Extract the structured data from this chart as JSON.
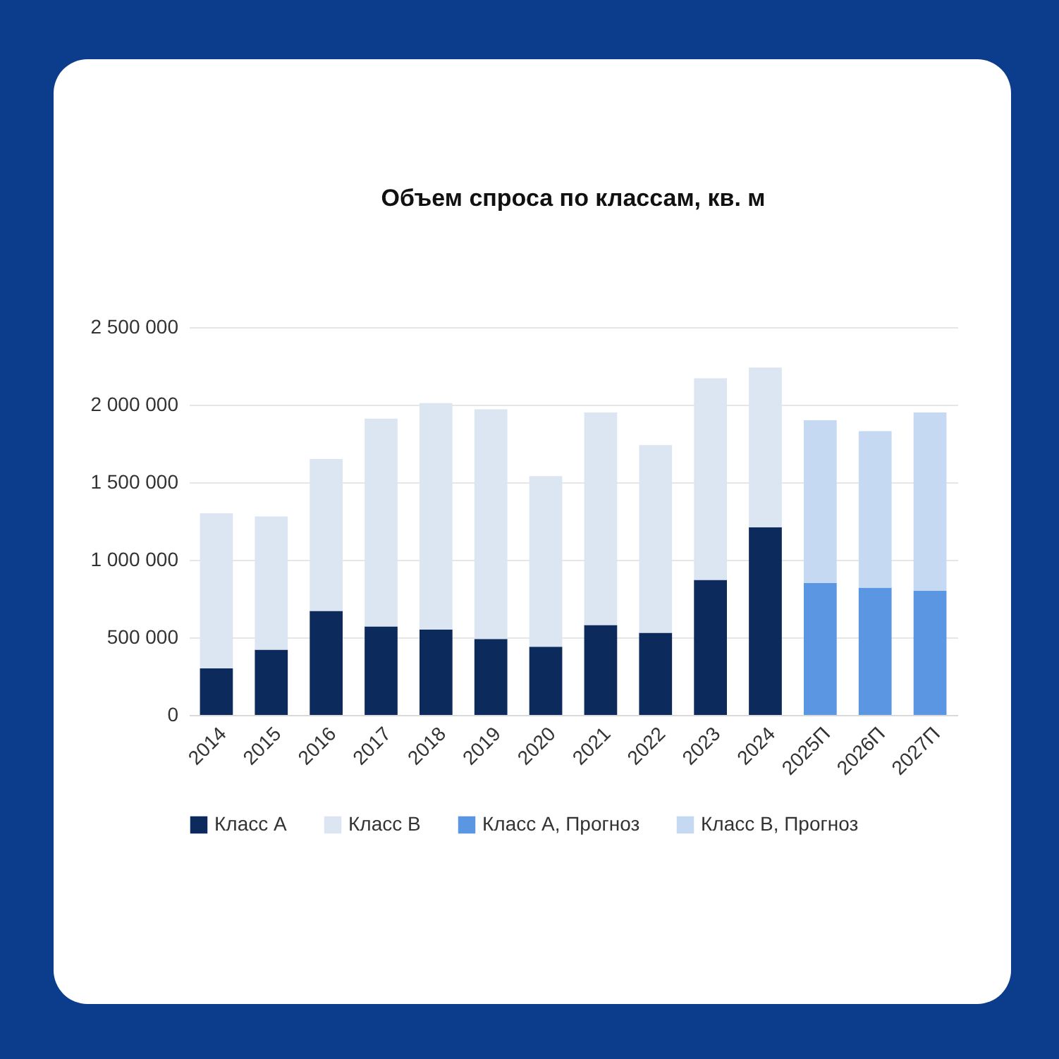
{
  "chart_data": {
    "type": "bar",
    "title": "Объем спроса по классам, кв. м",
    "stacked": true,
    "categories": [
      "2014",
      "2015",
      "2016",
      "2017",
      "2018",
      "2019",
      "2020",
      "2021",
      "2022",
      "2023",
      "2024",
      "2025П",
      "2026П",
      "2027П"
    ],
    "series": [
      {
        "name": "Класс A",
        "color": "#0d2a5c",
        "values": [
          300000,
          420000,
          670000,
          570000,
          550000,
          490000,
          440000,
          580000,
          530000,
          870000,
          1210000,
          null,
          null,
          null
        ]
      },
      {
        "name": "Класс B",
        "color": "#dce6f2",
        "values": [
          1000000,
          860000,
          980000,
          1340000,
          1460000,
          1480000,
          1100000,
          1370000,
          1210000,
          1300000,
          1030000,
          null,
          null,
          null
        ]
      },
      {
        "name": "Класс A, Прогноз",
        "color": "#5b96e3",
        "values": [
          null,
          null,
          null,
          null,
          null,
          null,
          null,
          null,
          null,
          null,
          null,
          850000,
          820000,
          800000
        ]
      },
      {
        "name": "Класс B, Прогноз",
        "color": "#c5d9f3",
        "values": [
          null,
          null,
          null,
          null,
          null,
          null,
          null,
          null,
          null,
          null,
          null,
          1050000,
          1010000,
          1150000
        ]
      }
    ],
    "ylim": [
      0,
      2500000
    ],
    "yticks": [
      {
        "value": 0,
        "label": "0"
      },
      {
        "value": 500000,
        "label": "500 000"
      },
      {
        "value": 1000000,
        "label": "1 000 000"
      },
      {
        "value": 1500000,
        "label": "1 500 000"
      },
      {
        "value": 2000000,
        "label": "2 000 000"
      },
      {
        "value": 2500000,
        "label": "2 500 000"
      }
    ],
    "grid": "y",
    "legend": "bottom"
  }
}
